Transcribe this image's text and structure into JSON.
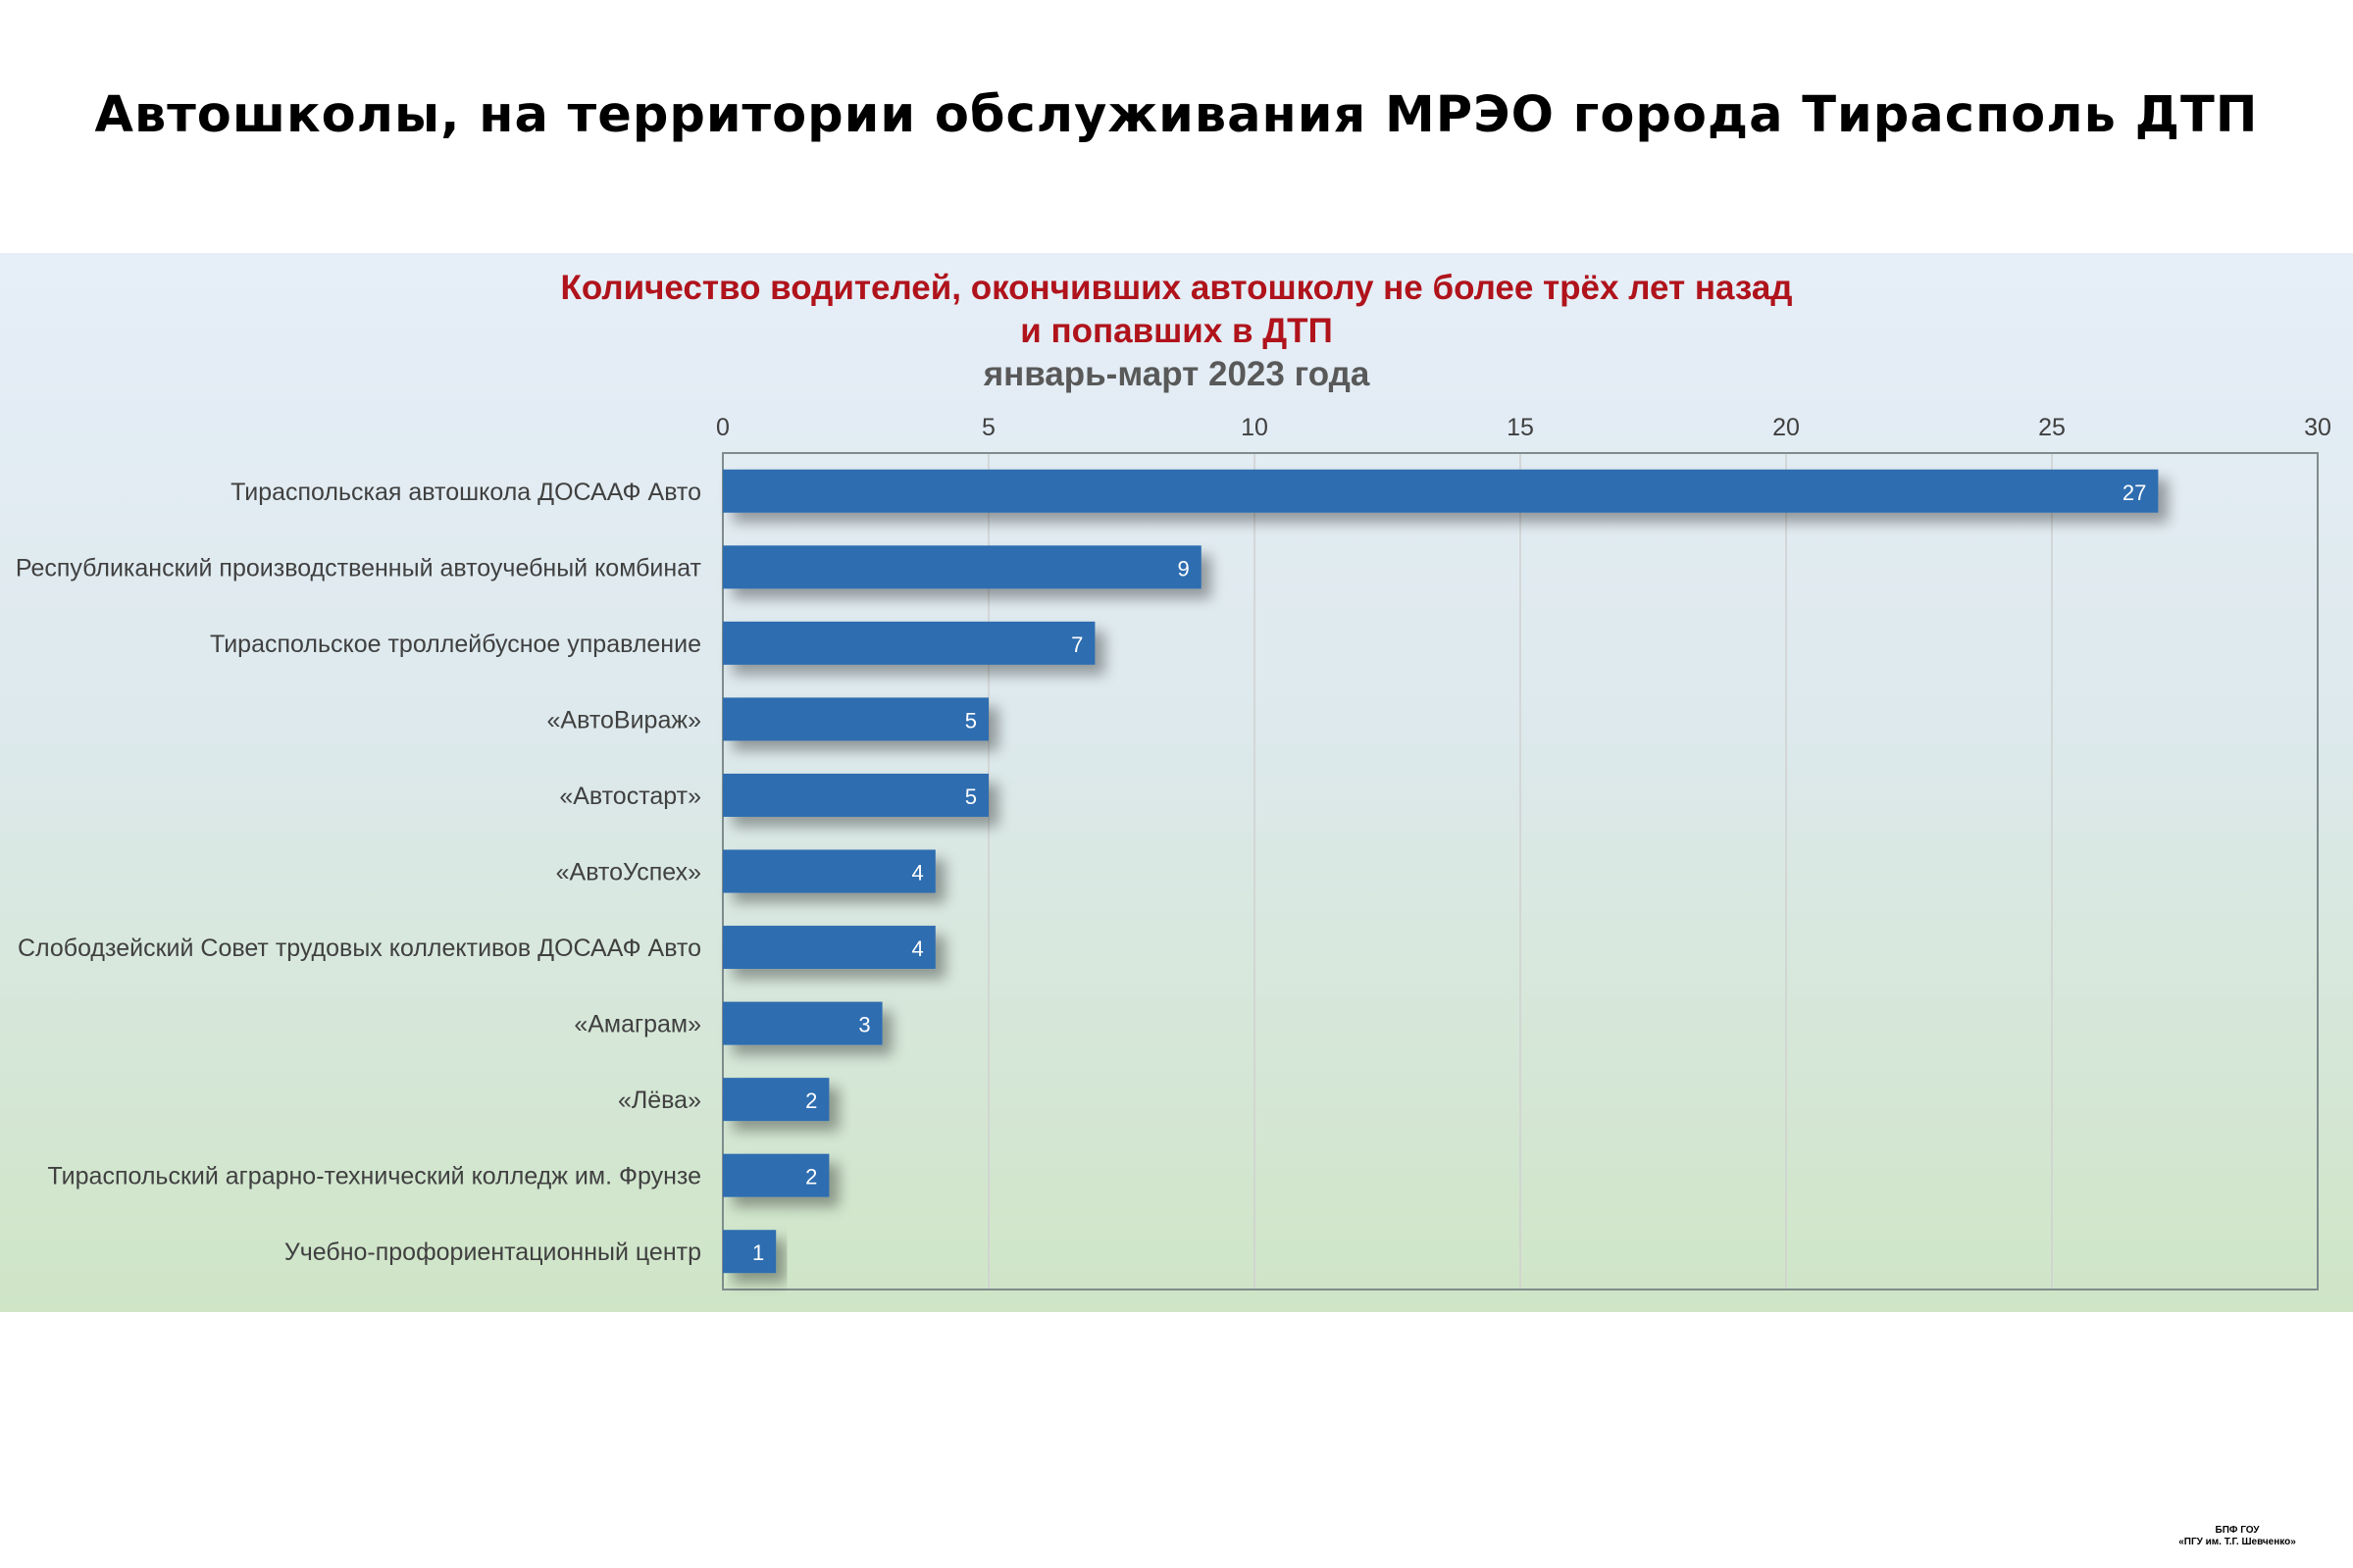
{
  "page": {
    "title": "Автошколы, на территории обслуживания МРЭО города Тирасполь ДТП"
  },
  "footer": {
    "line1": "БПФ ГОУ",
    "line2": "«ПГУ им. Т.Г. Шевченко»"
  },
  "colors": {
    "bar": "#2e6db0",
    "title_red": "#b0131b",
    "subtitle_gray": "#595959",
    "label_text": "#404040",
    "grid": "#d0d0d0"
  },
  "chart_data": {
    "type": "bar",
    "orientation": "horizontal",
    "title_line1": "Количество водителей, окончивших автошколу не более трёх лет назад",
    "title_line2": "и попавших в ДТП",
    "subtitle": "январь-март 2023 года",
    "categories": [
      "Тираспольская автошкола ДОСААФ Авто",
      "Республиканский производственный автоучебный комбинат",
      "Тираспольское троллейбусное управление",
      "«АвтоВираж»",
      "«Автостарт»",
      "«АвтоУспех»",
      "Слободзейский Совет трудовых коллективов ДОСААФ Авто",
      "«Амаграм»",
      "«Лёва»",
      "Тираспольский аграрно-технический колледж им. Фрунзе",
      "Учебно-профориентационный центр"
    ],
    "values": [
      27,
      9,
      7,
      5,
      5,
      4,
      4,
      3,
      2,
      2,
      1
    ],
    "xlim": [
      0,
      30
    ],
    "xticks": [
      0,
      5,
      10,
      15,
      20,
      25,
      30
    ],
    "x_axis_position": "top",
    "grid": true,
    "data_labels": true
  }
}
